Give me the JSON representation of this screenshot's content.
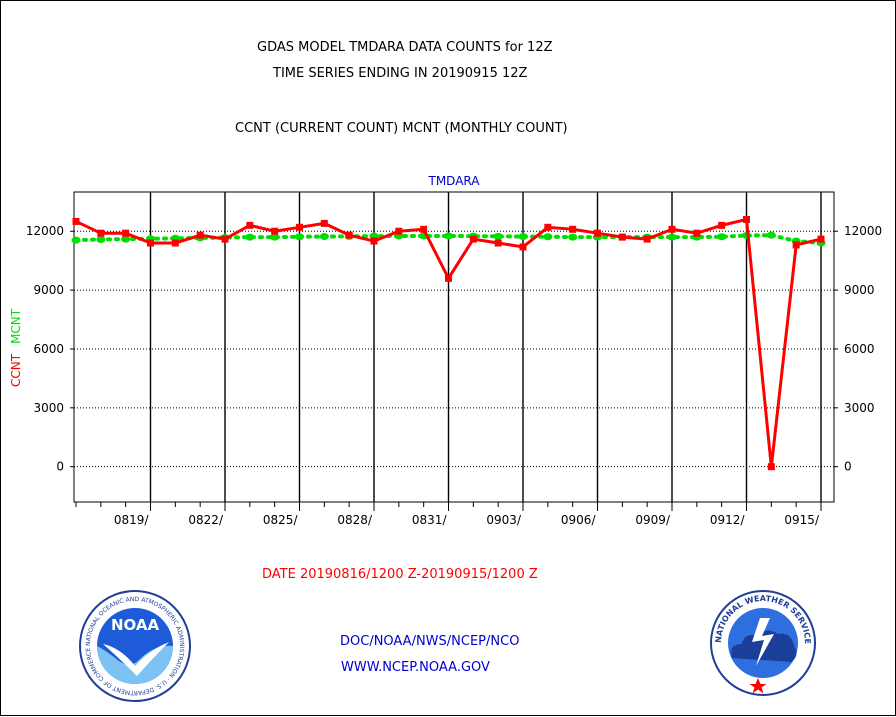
{
  "header": {
    "title_line1": "GDAS MODEL TMDARA DATA COUNTS for 12Z",
    "title_line2": "TIME SERIES ENDING IN 20190915 12Z",
    "subtitle": "CCNT (CURRENT COUNT) MCNT (MONTHLY COUNT)"
  },
  "footer": {
    "date_range": "DATE 20190816/1200 Z-20190915/1200 Z",
    "org_line": "DOC/NOAA/NWS/NCEP/NCO",
    "url": "WWW.NCEP.NOAA.GOV"
  },
  "logos": {
    "noaa_text": "NOAA",
    "noaa_ring_text": "NATIONAL OCEANIC AND ATMOSPHERIC ADMINISTRATION · U.S. DEPARTMENT OF COMMERCE",
    "nws_ring_text": "NATIONAL WEATHER SERVICE"
  },
  "colors": {
    "ccnt": "#ff0000",
    "mcnt": "#00dd00",
    "title": "#000000",
    "footer_blue": "#0000cc"
  },
  "chart_data": {
    "type": "line",
    "title": "TMDARA",
    "ylabel_series": [
      "CCNT",
      "MCNT"
    ],
    "ylim": [
      -1800,
      14000
    ],
    "yticks": [
      0,
      3000,
      6000,
      9000,
      12000
    ],
    "xlim": [
      0,
      30
    ],
    "xticks": [
      {
        "x": 3,
        "label": "0819/"
      },
      {
        "x": 6,
        "label": "0822/"
      },
      {
        "x": 9,
        "label": "0825/"
      },
      {
        "x": 12,
        "label": "0828/"
      },
      {
        "x": 15,
        "label": "0831/"
      },
      {
        "x": 18,
        "label": "0903/"
      },
      {
        "x": 21,
        "label": "0906/"
      },
      {
        "x": 24,
        "label": "0909/"
      },
      {
        "x": 27,
        "label": "0912/"
      },
      {
        "x": 30,
        "label": "0915/"
      }
    ],
    "grid": true,
    "series": [
      {
        "name": "CCNT",
        "color": "#ff0000",
        "style": "solid",
        "x": [
          0,
          1,
          2,
          3,
          4,
          5,
          6,
          7,
          8,
          9,
          10,
          11,
          12,
          13,
          14,
          15,
          16,
          17,
          18,
          19,
          20,
          21,
          22,
          23,
          24,
          25,
          26,
          27,
          28,
          29,
          30
        ],
        "values": [
          12500,
          11900,
          11900,
          11400,
          11400,
          11800,
          11600,
          12300,
          12000,
          12200,
          12400,
          11800,
          11500,
          12000,
          12100,
          9600,
          11600,
          11400,
          11200,
          12200,
          12100,
          11900,
          11700,
          11600,
          12100,
          11900,
          12300,
          12600,
          0,
          11300,
          11600
        ]
      },
      {
        "name": "MCNT",
        "color": "#00dd00",
        "style": "dotted",
        "x": [
          0,
          1,
          2,
          3,
          4,
          5,
          6,
          7,
          8,
          9,
          10,
          11,
          12,
          13,
          14,
          15,
          16,
          17,
          18,
          19,
          20,
          21,
          22,
          23,
          24,
          25,
          26,
          27,
          28,
          29,
          30
        ],
        "values": [
          11550,
          11580,
          11600,
          11620,
          11640,
          11660,
          11680,
          11700,
          11700,
          11720,
          11730,
          11740,
          11750,
          11760,
          11760,
          11760,
          11750,
          11740,
          11730,
          11720,
          11700,
          11700,
          11700,
          11700,
          11700,
          11700,
          11720,
          11780,
          11800,
          11500,
          11400
        ]
      }
    ]
  }
}
